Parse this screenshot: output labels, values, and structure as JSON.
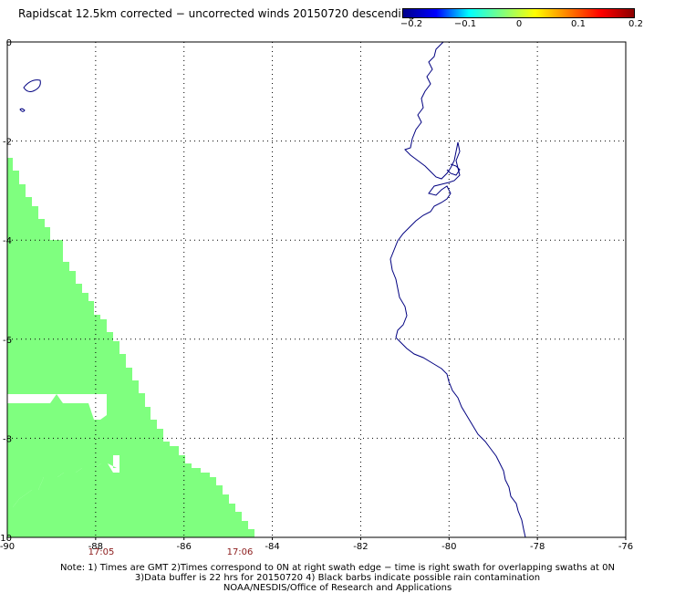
{
  "title": "Rapidscat 12.5km corrected − uncorrected winds 20150720 descending",
  "colorbar": {
    "labels": [
      "−0.2",
      "−0.1",
      "0",
      "0.1",
      "0.2"
    ],
    "colors": [
      "#00008b",
      "#0000ff",
      "#00ffff",
      "#7fff7f",
      "#ffff00",
      "#ff7f00",
      "#ff0000",
      "#8b0000"
    ]
  },
  "swath_color": "#7fff7f",
  "coast_color": "#000080",
  "axes": {
    "lon_range": [
      -90,
      -76
    ],
    "lat_range": [
      -10,
      0
    ],
    "x_ticks": [
      "-90",
      "-88",
      "-86",
      "-84",
      "-82",
      "-80",
      "-78",
      "-76"
    ],
    "y_ticks": [
      "0",
      "-2",
      "-4",
      "-6",
      "-8",
      "-10"
    ]
  },
  "swath_times": [
    "17:05",
    "17:06"
  ],
  "notes": [
    "Note: 1) Times are GMT 2)Times correspond to 0N at right swath edge − time is right swath for overlapping swaths at 0N",
    "3)Data buffer is 22 hrs for 20150720 4) Black barbs indicate possible rain contamination",
    "NOAA/NESDIS/Office of Research and Applications"
  ]
}
